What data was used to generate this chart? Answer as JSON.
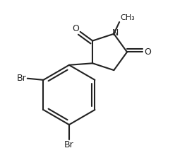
{
  "background_color": "#ffffff",
  "line_color": "#222222",
  "line_width": 1.5,
  "font_size_atom": 9.0,
  "font_size_methyl": 8.0,
  "figsize": [
    2.65,
    2.16
  ],
  "dpi": 100,
  "xlim": [
    0.0,
    1.0
  ],
  "ylim": [
    0.0,
    1.0
  ]
}
